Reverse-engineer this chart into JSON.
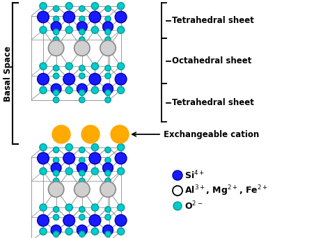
{
  "bg_color": "#ffffff",
  "si_color": "#1a1aff",
  "si_edge": "#0000aa",
  "al_color": "#d0d0d0",
  "al_edge": "#888888",
  "o_color": "#00cccc",
  "o_edge": "#009999",
  "orange_color": "#ffaa00",
  "line_color": "#888888",
  "label_si": "Si$^{4+}$",
  "label_al": "Al$^{3+}$, Mg$^{2+}$, Fe$^{2+}$",
  "label_o": "O$^{2-}$",
  "label_tet1": "Tetrahedral sheet",
  "label_oct": "Octahedral sheet",
  "label_tet2": "Tetrahedral sheet",
  "label_exc": "Exchangeable cation",
  "label_basal": "Basal Space",
  "figsize": [
    4.74,
    3.42
  ],
  "dpi": 100
}
